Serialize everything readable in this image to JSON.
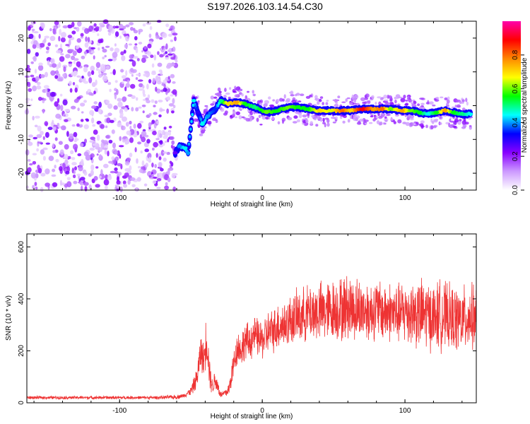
{
  "title": "S197.2026.103.14.54.C30",
  "chart_data": [
    {
      "type": "heatmap",
      "name": "spectrogram",
      "xlabel": "Height of straight line (km)",
      "ylabel": "Frequency (Hz)",
      "xlim": [
        -165,
        150
      ],
      "ylim": [
        -25,
        25
      ],
      "xticks": [
        -100,
        0,
        100
      ],
      "yticks": [
        -20,
        -10,
        0,
        10,
        20
      ],
      "colorbar": {
        "label": "Normalized spectral amplitude",
        "range": [
          0.0,
          1.0
        ],
        "ticks": [
          0.0,
          0.2,
          0.4,
          0.6,
          0.8
        ],
        "tick_labels": [
          "0.0",
          "0.2",
          "0.4",
          "0.6",
          "0.8"
        ],
        "colors": [
          "#ffffff",
          "#cc99ff",
          "#8800ff",
          "#0000ff",
          "#00ffff",
          "#00ff00",
          "#ffff00",
          "#ff8800",
          "#ff0000",
          "#ff00aa"
        ]
      },
      "noise_region": {
        "x_range": [
          -165,
          -60
        ],
        "freq_range": [
          -25,
          25
        ],
        "amplitude_range": [
          0.05,
          0.25
        ]
      },
      "trace": {
        "description": "dominant frequency ridge",
        "points": [
          {
            "x": -61,
            "f": -14,
            "a": 0.25
          },
          {
            "x": -58,
            "f": -12,
            "a": 0.4
          },
          {
            "x": -54,
            "f": -12.5,
            "a": 0.45
          },
          {
            "x": -52,
            "f": -14,
            "a": 0.4
          },
          {
            "x": -48,
            "f": 1.5,
            "a": 0.45
          },
          {
            "x": -45,
            "f": -2,
            "a": 0.3
          },
          {
            "x": -42,
            "f": -5.5,
            "a": 0.45
          },
          {
            "x": -38,
            "f": -3,
            "a": 0.4
          },
          {
            "x": -33,
            "f": -1,
            "a": 0.35
          },
          {
            "x": -29,
            "f": 1.5,
            "a": 0.5
          },
          {
            "x": -24,
            "f": 0.5,
            "a": 0.7
          },
          {
            "x": -18,
            "f": 1,
            "a": 0.75
          },
          {
            "x": -12,
            "f": 0.5,
            "a": 0.55
          },
          {
            "x": -5,
            "f": -0.5,
            "a": 0.5
          },
          {
            "x": 3,
            "f": -2,
            "a": 0.6
          },
          {
            "x": 10,
            "f": -1.5,
            "a": 0.55
          },
          {
            "x": 18,
            "f": -0.5,
            "a": 0.6
          },
          {
            "x": 25,
            "f": -0.5,
            "a": 0.55
          },
          {
            "x": 32,
            "f": -1,
            "a": 0.55
          },
          {
            "x": 40,
            "f": -1.5,
            "a": 0.7
          },
          {
            "x": 48,
            "f": -1.5,
            "a": 0.65
          },
          {
            "x": 56,
            "f": -1.5,
            "a": 0.8
          },
          {
            "x": 62,
            "f": -1.5,
            "a": 0.7
          },
          {
            "x": 70,
            "f": -1,
            "a": 0.9
          },
          {
            "x": 78,
            "f": -1,
            "a": 0.75
          },
          {
            "x": 84,
            "f": -1,
            "a": 0.8
          },
          {
            "x": 90,
            "f": -1,
            "a": 0.6
          },
          {
            "x": 98,
            "f": -1.5,
            "a": 0.75
          },
          {
            "x": 104,
            "f": -1.5,
            "a": 0.6
          },
          {
            "x": 110,
            "f": -2,
            "a": 0.55
          },
          {
            "x": 116,
            "f": -2.5,
            "a": 0.45
          },
          {
            "x": 122,
            "f": -2,
            "a": 0.55
          },
          {
            "x": 128,
            "f": -1.5,
            "a": 0.75
          },
          {
            "x": 134,
            "f": -2,
            "a": 0.55
          },
          {
            "x": 140,
            "f": -2.5,
            "a": 0.5
          },
          {
            "x": 146,
            "f": -2.5,
            "a": 0.45
          }
        ]
      }
    },
    {
      "type": "line",
      "name": "snr",
      "xlabel": "Height of straight line (km)",
      "ylabel": "SNR (10 * v/v)",
      "xlim": [
        -165,
        150
      ],
      "ylim": [
        0,
        650
      ],
      "xticks": [
        -100,
        0,
        100
      ],
      "yticks": [
        0,
        200,
        400,
        600
      ],
      "color": "#ee3333",
      "series": [
        {
          "name": "SNR",
          "x": [
            -165,
            -150,
            -135,
            -120,
            -105,
            -90,
            -75,
            -60,
            -55,
            -50,
            -46,
            -43,
            -41,
            -39,
            -37,
            -35,
            -33,
            -31,
            -29,
            -27,
            -25,
            -23,
            -21,
            -19,
            -17,
            -15,
            -12,
            -9,
            -6,
            -3,
            0,
            4,
            8,
            12,
            16,
            20,
            25,
            30,
            35,
            40,
            45,
            50,
            55,
            60,
            65,
            70,
            75,
            80,
            85,
            90,
            95,
            100,
            105,
            110,
            115,
            120,
            125,
            130,
            135,
            140,
            145,
            150
          ],
          "mean": [
            20,
            20,
            20,
            20,
            20,
            20,
            20,
            22,
            28,
            45,
            90,
            200,
            160,
            260,
            120,
            60,
            90,
            60,
            30,
            35,
            40,
            60,
            120,
            180,
            220,
            200,
            240,
            230,
            260,
            250,
            240,
            270,
            280,
            300,
            300,
            320,
            330,
            340,
            350,
            350,
            350,
            360,
            360,
            370,
            360,
            360,
            350,
            360,
            350,
            350,
            340,
            350,
            350,
            340,
            340,
            330,
            340,
            330,
            320,
            320,
            330,
            330
          ],
          "spread": [
            6,
            6,
            6,
            6,
            6,
            6,
            6,
            8,
            8,
            15,
            40,
            70,
            60,
            100,
            60,
            30,
            40,
            30,
            12,
            15,
            18,
            30,
            50,
            60,
            60,
            60,
            70,
            70,
            70,
            70,
            70,
            80,
            80,
            90,
            90,
            90,
            100,
            100,
            110,
            110,
            110,
            110,
            120,
            120,
            120,
            110,
            110,
            110,
            110,
            110,
            110,
            120,
            120,
            130,
            130,
            120,
            130,
            120,
            120,
            120,
            120,
            120
          ]
        }
      ]
    }
  ]
}
